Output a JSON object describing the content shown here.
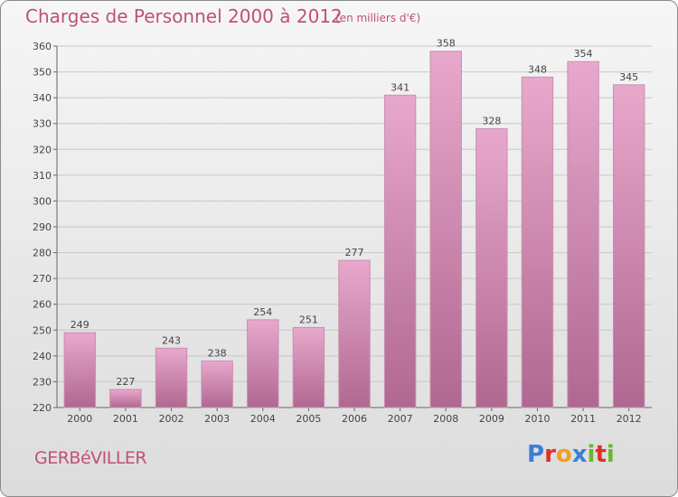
{
  "header": {
    "title": "Charges de Personnel 2000 à 2012",
    "subtitle": "(en milliers d'€)"
  },
  "footer": {
    "place": "GERBéVILLER",
    "brand": "Proxiti"
  },
  "colors": {
    "title": "#c0507a",
    "bar_top": "#e8a8cc",
    "bar_bottom": "#b06890",
    "brand_letters": [
      "#3b7fd6",
      "#e0302a",
      "#f0a020",
      "#3b7fd6",
      "#6ab82c",
      "#e0302a",
      "#6ab82c"
    ]
  },
  "chart_data": {
    "type": "bar",
    "title": "Charges de Personnel 2000 à 2012",
    "subtitle": "(en milliers d'€)",
    "categories": [
      "2000",
      "2001",
      "2002",
      "2003",
      "2004",
      "2005",
      "2006",
      "2007",
      "2008",
      "2009",
      "2010",
      "2011",
      "2012"
    ],
    "values": [
      249,
      227,
      243,
      238,
      254,
      251,
      277,
      341,
      358,
      328,
      348,
      354,
      345
    ],
    "ylim": [
      220,
      360
    ],
    "yticks": [
      220,
      230,
      240,
      250,
      260,
      270,
      280,
      290,
      300,
      310,
      320,
      330,
      340,
      350,
      360
    ],
    "grid": true,
    "data_labels": true
  }
}
